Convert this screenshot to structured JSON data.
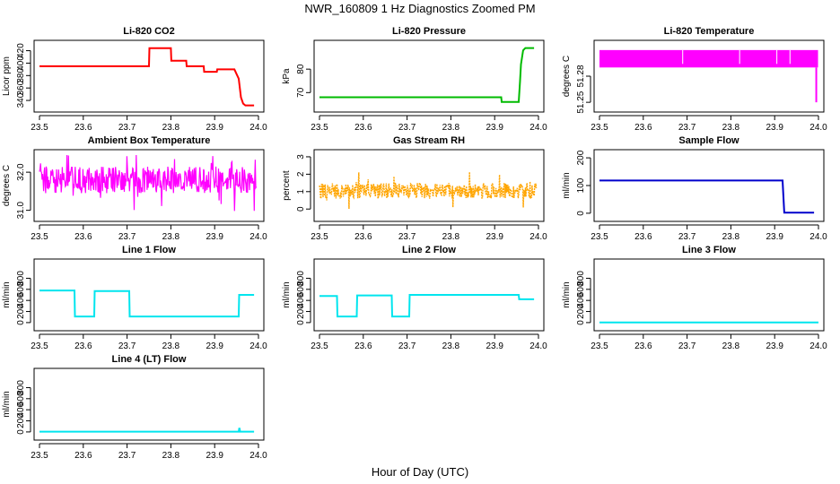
{
  "figure": {
    "title": "NWR_160809  1 Hz Diagnostics Zoomed PM",
    "xlabel": "Hour of Day (UTC)"
  },
  "chart_data": [
    {
      "type": "line",
      "title": "Li-820 CO2",
      "ylabel": "Licor ppm",
      "color": "#ff0000",
      "xlim": [
        23.5,
        24.0
      ],
      "ylim": [
        330,
        428
      ],
      "xticks": [
        23.5,
        23.6,
        23.7,
        23.8,
        23.9,
        24.0
      ],
      "xtick_labels": [
        "23.5",
        "23.6",
        "23.7",
        "23.8",
        "23.9",
        "24.0"
      ],
      "yticks": [
        340,
        360,
        380,
        400,
        420
      ],
      "ytick_labels": [
        "340",
        "360",
        "380",
        "400",
        "420"
      ],
      "series": [
        {
          "x": [
            23.5,
            23.75,
            23.751,
            23.76,
            23.761,
            23.8,
            23.801,
            23.835,
            23.836,
            23.875,
            23.876,
            23.905,
            23.906,
            23.945,
            23.955,
            23.96,
            23.965,
            23.97,
            23.99
          ],
          "y": [
            395,
            395,
            424,
            424,
            424,
            424,
            404,
            404,
            395,
            395,
            386,
            386,
            390,
            390,
            375,
            345,
            335,
            332,
            332
          ]
        }
      ]
    },
    {
      "type": "line",
      "title": "Li-820 Pressure",
      "ylabel": "kPa",
      "color": "#00bb00",
      "xlim": [
        23.5,
        24.0
      ],
      "ylim": [
        64,
        90
      ],
      "xticks": [
        23.5,
        23.6,
        23.7,
        23.8,
        23.9,
        24.0
      ],
      "xtick_labels": [
        "23.5",
        "23.6",
        "23.7",
        "23.8",
        "23.9",
        "24.0"
      ],
      "yticks": [
        70,
        80
      ],
      "ytick_labels": [
        "70",
        "80"
      ],
      "series": [
        {
          "x": [
            23.5,
            23.915,
            23.916,
            23.955,
            23.958,
            23.96,
            23.965,
            23.97,
            23.99
          ],
          "y": [
            68,
            68,
            66,
            66,
            75,
            82,
            88,
            89,
            89
          ]
        }
      ]
    },
    {
      "type": "line",
      "title": "Li-820 Temperature",
      "ylabel": "degrees C",
      "color": "#ff00ff",
      "xlim": [
        23.5,
        24.0
      ],
      "ylim": [
        51.245,
        51.315
      ],
      "xticks": [
        23.5,
        23.6,
        23.7,
        23.8,
        23.9,
        24.0
      ],
      "xtick_labels": [
        "23.5",
        "23.6",
        "23.7",
        "23.8",
        "23.9",
        "24.0"
      ],
      "yticks": [
        51.25,
        51.28
      ],
      "ytick_labels": [
        "51.25",
        "51.28"
      ],
      "band_low": 51.29,
      "band_high": 51.31,
      "spike_x": 23.995,
      "spike_y": 51.25
    },
    {
      "type": "line",
      "title": "Ambient Box Temperature",
      "ylabel": "degrees C",
      "color": "#ff00ff",
      "xlim": [
        23.5,
        24.0
      ],
      "ylim": [
        30.85,
        32.45
      ],
      "xticks": [
        23.5,
        23.6,
        23.7,
        23.8,
        23.9,
        24.0
      ],
      "xtick_labels": [
        "23.5",
        "23.6",
        "23.7",
        "23.8",
        "23.9",
        "24.0"
      ],
      "yticks": [
        31.0,
        32.0
      ],
      "ytick_labels": [
        "31.0",
        "32.0"
      ],
      "noise_mean": 31.8,
      "noise_amp": 0.35
    },
    {
      "type": "line",
      "title": "Gas Stream RH",
      "ylabel": "percent",
      "color": "#ffa500",
      "xlim": [
        23.5,
        24.0
      ],
      "ylim": [
        -0.4,
        3.1
      ],
      "xticks": [
        23.5,
        23.6,
        23.7,
        23.8,
        23.9,
        24.0
      ],
      "xtick_labels": [
        "23.5",
        "23.6",
        "23.7",
        "23.8",
        "23.9",
        "24.0"
      ],
      "yticks": [
        0,
        1,
        2,
        3
      ],
      "ytick_labels": [
        "0",
        "1",
        "2",
        "3"
      ],
      "noise_mean": 1.05,
      "noise_amp": 0.45
    },
    {
      "type": "line",
      "title": "Sample Flow",
      "ylabel": "ml/min",
      "color": "#0000cc",
      "xlim": [
        23.5,
        24.0
      ],
      "ylim": [
        -10,
        210
      ],
      "xticks": [
        23.5,
        23.6,
        23.7,
        23.8,
        23.9,
        24.0
      ],
      "xtick_labels": [
        "23.5",
        "23.6",
        "23.7",
        "23.8",
        "23.9",
        "24.0"
      ],
      "yticks": [
        0,
        100,
        200
      ],
      "ytick_labels": [
        "0",
        "100",
        "200"
      ],
      "series": [
        {
          "x": [
            23.5,
            23.918,
            23.922,
            23.99
          ],
          "y": [
            118,
            118,
            2,
            2
          ]
        }
      ]
    },
    {
      "type": "line",
      "title": "Line 1 Flow",
      "ylabel": "ml/min",
      "color": "#00e5ee",
      "xlim": [
        23.5,
        24.0
      ],
      "ylim": [
        -50,
        1050
      ],
      "xticks": [
        23.5,
        23.6,
        23.7,
        23.8,
        23.9,
        24.0
      ],
      "xtick_labels": [
        "23.5",
        "23.6",
        "23.7",
        "23.8",
        "23.9",
        "24.0"
      ],
      "yticks": [
        0,
        200,
        400,
        600,
        800
      ],
      "ytick_labels": [
        "0",
        "200",
        "400",
        "600",
        "800"
      ],
      "series": [
        {
          "x": [
            23.5,
            23.58,
            23.581,
            23.625,
            23.626,
            23.705,
            23.706,
            23.955,
            23.956,
            23.99
          ],
          "y": [
            580,
            580,
            110,
            110,
            570,
            570,
            110,
            110,
            500,
            500
          ]
        }
      ]
    },
    {
      "type": "line",
      "title": "Line 2 Flow",
      "ylabel": "ml/min",
      "color": "#00e5ee",
      "xlim": [
        23.5,
        24.0
      ],
      "ylim": [
        -50,
        1050
      ],
      "xticks": [
        23.5,
        23.6,
        23.7,
        23.8,
        23.9,
        24.0
      ],
      "xtick_labels": [
        "23.5",
        "23.6",
        "23.7",
        "23.8",
        "23.9",
        "24.0"
      ],
      "yticks": [
        0,
        200,
        400,
        600,
        800
      ],
      "ytick_labels": [
        "0",
        "200",
        "400",
        "600",
        "800"
      ],
      "series": [
        {
          "x": [
            23.5,
            23.54,
            23.541,
            23.585,
            23.586,
            23.665,
            23.666,
            23.705,
            23.706,
            23.955,
            23.956,
            23.99
          ],
          "y": [
            480,
            480,
            110,
            110,
            490,
            490,
            110,
            110,
            500,
            500,
            420,
            420
          ]
        }
      ]
    },
    {
      "type": "line",
      "title": "Line 3 Flow",
      "ylabel": "ml/min",
      "color": "#00e5ee",
      "xlim": [
        23.5,
        24.0
      ],
      "ylim": [
        -50,
        1050
      ],
      "xticks": [
        23.5,
        23.6,
        23.7,
        23.8,
        23.9,
        24.0
      ],
      "xtick_labels": [
        "23.5",
        "23.6",
        "23.7",
        "23.8",
        "23.9",
        "24.0"
      ],
      "yticks": [
        0,
        200,
        400,
        600,
        800
      ],
      "ytick_labels": [
        "0",
        "200",
        "400",
        "600",
        "800"
      ],
      "series": [
        {
          "x": [
            23.5,
            24.0
          ],
          "y": [
            2,
            2
          ]
        }
      ]
    },
    {
      "type": "line",
      "title": "Line 4 (LT) Flow",
      "ylabel": "ml/min",
      "color": "#00e5ee",
      "xlim": [
        23.5,
        24.0
      ],
      "ylim": [
        -50,
        1050
      ],
      "xticks": [
        23.5,
        23.6,
        23.7,
        23.8,
        23.9,
        24.0
      ],
      "xtick_labels": [
        "23.5",
        "23.6",
        "23.7",
        "23.8",
        "23.9",
        "24.0"
      ],
      "yticks": [
        0,
        200,
        400,
        600,
        800
      ],
      "ytick_labels": [
        "0",
        "200",
        "400",
        "600",
        "800"
      ],
      "series": [
        {
          "x": [
            23.5,
            23.955,
            23.956,
            23.957,
            23.958,
            23.99
          ],
          "y": [
            5,
            5,
            60,
            60,
            5,
            5
          ]
        }
      ]
    }
  ]
}
